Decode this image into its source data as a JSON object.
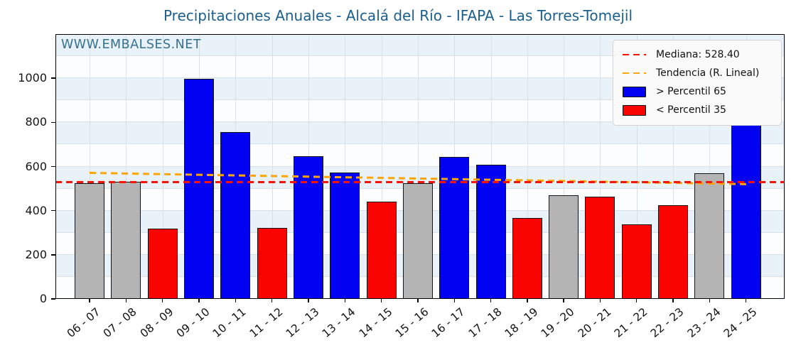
{
  "watermark": "WWW.EMBALSES.NET",
  "chart_data": {
    "type": "bar",
    "title": "Precipitaciones Anuales - Alcalá del Río - IFAPA - Las Torres-Tomejil",
    "categories": [
      "06 - 07",
      "07 - 08",
      "08 - 09",
      "09 - 10",
      "10 - 11",
      "11 - 12",
      "12 - 13",
      "13 - 14",
      "14 - 15",
      "15 - 16",
      "16 - 17",
      "17 - 18",
      "18 - 19",
      "19 - 20",
      "20 - 21",
      "21 - 22",
      "22 - 23",
      "23 - 24",
      "24 - 25"
    ],
    "values": [
      525,
      530,
      319,
      997,
      756,
      322,
      646,
      573,
      440,
      526,
      643,
      607,
      366,
      470,
      464,
      338,
      424,
      568,
      832
    ],
    "status": [
      "normal",
      "normal",
      "below",
      "above",
      "above",
      "below",
      "above",
      "above",
      "below",
      "normal",
      "above",
      "above",
      "below",
      "normal",
      "below",
      "below",
      "below",
      "normal",
      "above"
    ],
    "colors": {
      "above": "#0202f2",
      "below": "#f90400",
      "normal": "#b4b4b4",
      "bar_edge": "#141414",
      "median_line": "#fb1207",
      "trend_line": "#ffa508",
      "current_cap": "#8487e0",
      "title": "#1b5f8d",
      "watermark": "#34718f"
    },
    "median": 528.4,
    "trend": {
      "start_value": 572,
      "end_value": 521
    },
    "current_season_cap": {
      "index": 18,
      "from": 812,
      "to": 832
    },
    "legend": [
      {
        "swatch": "dashed-line",
        "color": "#fb1207",
        "label": "Mediana: 528.40"
      },
      {
        "swatch": "dashed-line",
        "color": "#ffa508",
        "label": "Tendencia (R. Lineal)"
      },
      {
        "swatch": "patch",
        "color": "#0202f2",
        "label": "> Percentil 65"
      },
      {
        "swatch": "patch",
        "color": "#f90400",
        "label": "< Percentil 35"
      }
    ],
    "xlabel": "",
    "ylabel": "",
    "ylim": [
      0,
      1200
    ],
    "yticks": [
      0,
      200,
      400,
      600,
      800,
      1000
    ],
    "grid": true,
    "legend_position": "upper right",
    "band_stripes_every": 100
  }
}
